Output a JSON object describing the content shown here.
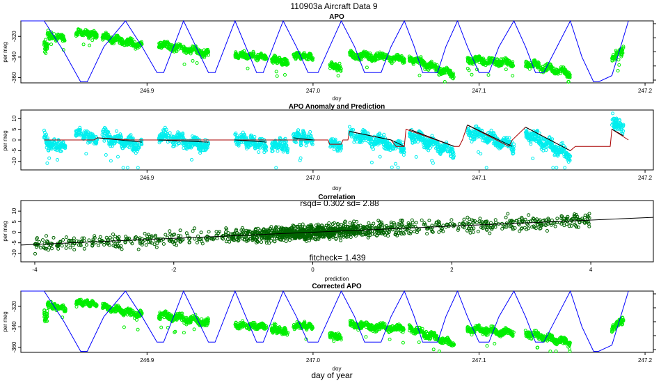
{
  "figure": {
    "title": "110903a   Aircraft Data 9",
    "bottom_label": "day of year"
  },
  "chart_data": [
    {
      "type": "scatter",
      "title": "APO",
      "xlabel": "doy",
      "ylabel": "per meg",
      "xlim": [
        246.824,
        247.205
      ],
      "ylim": [
        -365,
        -305
      ],
      "xticks": [
        "246.9",
        "247.0",
        "247.1",
        "247.2"
      ],
      "xtick_values": [
        246.9,
        247.0,
        247.1,
        247.2
      ],
      "yticks": [
        "-320",
        "-340",
        "-360"
      ],
      "ytick_values": [
        -320,
        -340,
        -360
      ],
      "series": [
        {
          "name": "APO observations",
          "kind": "points",
          "color": "#00ee00",
          "segments": [
            {
              "x0": 246.838,
              "x1": 246.84,
              "y0": -330,
              "y1": -330,
              "noise": 8
            },
            {
              "x0": 246.84,
              "x1": 246.847,
              "y0": -318,
              "y1": -322,
              "noise": 4
            },
            {
              "x0": 246.848,
              "x1": 246.851,
              "y0": -319,
              "y1": -324,
              "noise": 4
            },
            {
              "x0": 246.857,
              "x1": 246.87,
              "y0": -316,
              "y1": -318,
              "noise": 4
            },
            {
              "x0": 246.873,
              "x1": 246.897,
              "y0": -320,
              "y1": -329,
              "noise": 5
            },
            {
              "x0": 246.907,
              "x1": 246.937,
              "y0": -328,
              "y1": -336,
              "noise": 5
            },
            {
              "x0": 246.953,
              "x1": 246.972,
              "y0": -338,
              "y1": -340,
              "noise": 4
            },
            {
              "x0": 246.975,
              "x1": 246.985,
              "y0": -341,
              "y1": -346,
              "noise": 5
            },
            {
              "x0": 246.988,
              "x1": 247.0,
              "y0": -338,
              "y1": -340,
              "noise": 4
            },
            {
              "x0": 247.01,
              "x1": 247.017,
              "y0": -348,
              "y1": -351,
              "noise": 4
            },
            {
              "x0": 247.022,
              "x1": 247.055,
              "y0": -338,
              "y1": -342,
              "noise": 5
            },
            {
              "x0": 247.058,
              "x1": 247.085,
              "y0": -341,
              "y1": -357,
              "noise": 5
            },
            {
              "x0": 247.093,
              "x1": 247.121,
              "y0": -342,
              "y1": -346,
              "noise": 5
            },
            {
              "x0": 247.128,
              "x1": 247.155,
              "y0": -346,
              "y1": -356,
              "noise": 5
            },
            {
              "x0": 247.18,
              "x1": 247.187,
              "y0": -342,
              "y1": -333,
              "noise": 5
            }
          ]
        },
        {
          "name": "altitude profile",
          "kind": "line",
          "color": "#0000ff",
          "profile": [
            [
              246.824,
              -305
            ],
            [
              246.838,
              -305
            ],
            [
              246.85,
              -335
            ],
            [
              246.86,
              -364
            ],
            [
              246.864,
              -364
            ],
            [
              246.874,
              -330
            ],
            [
              246.887,
              -305
            ],
            [
              246.897,
              -330
            ],
            [
              246.906,
              -355
            ],
            [
              246.91,
              -355
            ],
            [
              246.922,
              -305
            ],
            [
              246.937,
              -355
            ],
            [
              246.941,
              -355
            ],
            [
              246.953,
              -305
            ],
            [
              246.966,
              -355
            ],
            [
              246.97,
              -355
            ],
            [
              246.982,
              -305
            ],
            [
              246.99,
              -330
            ],
            [
              246.997,
              -355
            ],
            [
              247.003,
              -355
            ],
            [
              247.01,
              -330
            ],
            [
              247.017,
              -305
            ],
            [
              247.025,
              -330
            ],
            [
              247.031,
              -355
            ],
            [
              247.041,
              -355
            ],
            [
              247.047,
              -330
            ],
            [
              247.055,
              -305
            ],
            [
              247.061,
              -330
            ],
            [
              247.066,
              -355
            ],
            [
              247.075,
              -355
            ],
            [
              247.08,
              -330
            ],
            [
              247.087,
              -305
            ],
            [
              247.093,
              -330
            ],
            [
              247.1,
              -355
            ],
            [
              247.106,
              -355
            ],
            [
              247.112,
              -330
            ],
            [
              247.121,
              -305
            ],
            [
              247.128,
              -330
            ],
            [
              247.134,
              -355
            ],
            [
              247.139,
              -355
            ],
            [
              247.147,
              -330
            ],
            [
              247.155,
              -305
            ],
            [
              247.162,
              -340
            ],
            [
              247.169,
              -364
            ],
            [
              247.172,
              -364
            ],
            [
              247.18,
              -358
            ],
            [
              247.19,
              -305
            ]
          ]
        }
      ],
      "profile_axis": {
        "side": "right",
        "ticks": 5
      }
    },
    {
      "type": "scatter",
      "title": "APO Anomaly and Prediction",
      "xlabel": "doy",
      "ylabel": "per meg",
      "xlim": [
        246.824,
        247.205
      ],
      "ylim": [
        -14,
        14
      ],
      "xticks": [
        "246.9",
        "247.0",
        "247.1",
        "247.2"
      ],
      "xtick_values": [
        246.9,
        247.0,
        247.1,
        247.2
      ],
      "yticks": [
        "10",
        "5",
        "0",
        "-5",
        "-10"
      ],
      "ytick_values": [
        10,
        5,
        0,
        -5,
        -10
      ],
      "series": [
        {
          "name": "anomaly",
          "kind": "points",
          "color": "#00eeee",
          "segments": [
            {
              "x0": 246.838,
              "x1": 246.841,
              "y0": 2,
              "y1": -3,
              "noise": 4
            },
            {
              "x0": 246.841,
              "x1": 246.851,
              "y0": -2,
              "y1": -3,
              "noise": 3
            },
            {
              "x0": 246.857,
              "x1": 246.87,
              "y0": 4,
              "y1": 0,
              "noise": 3
            },
            {
              "x0": 246.873,
              "x1": 246.897,
              "y0": 2,
              "y1": -3,
              "noise": 4
            },
            {
              "x0": 246.907,
              "x1": 246.937,
              "y0": 2,
              "y1": -3,
              "noise": 4
            },
            {
              "x0": 246.953,
              "x1": 246.972,
              "y0": 1,
              "y1": -3,
              "noise": 4
            },
            {
              "x0": 246.975,
              "x1": 246.985,
              "y0": -2,
              "y1": -3,
              "noise": 4
            },
            {
              "x0": 246.988,
              "x1": 247.0,
              "y0": 2,
              "y1": 0,
              "noise": 4
            },
            {
              "x0": 247.01,
              "x1": 247.017,
              "y0": -1,
              "y1": -3,
              "noise": 3
            },
            {
              "x0": 247.022,
              "x1": 247.055,
              "y0": 3,
              "y1": -4,
              "noise": 4
            },
            {
              "x0": 247.058,
              "x1": 247.085,
              "y0": 3,
              "y1": -6,
              "noise": 4
            },
            {
              "x0": 247.093,
              "x1": 247.121,
              "y0": 4,
              "y1": -3,
              "noise": 4
            },
            {
              "x0": 247.128,
              "x1": 247.155,
              "y0": 3,
              "y1": -7,
              "noise": 4
            },
            {
              "x0": 247.18,
              "x1": 247.187,
              "y0": 9,
              "y1": 5,
              "noise": 4
            }
          ]
        },
        {
          "name": "baseline",
          "kind": "line",
          "color": "#aa0000",
          "points": [
            [
              246.838,
              0
            ],
            [
              246.868,
              0
            ],
            [
              246.87,
              1
            ],
            [
              246.89,
              0
            ],
            [
              247.009,
              0
            ],
            [
              247.01,
              -2
            ],
            [
              247.017,
              -2
            ],
            [
              247.018,
              0
            ],
            [
              247.021,
              0
            ],
            [
              247.022,
              4
            ],
            [
              247.047,
              0
            ],
            [
              247.05,
              -3
            ],
            [
              247.052,
              -3
            ],
            [
              247.055,
              -3
            ],
            [
              247.056,
              5
            ],
            [
              247.085,
              -3
            ],
            [
              247.088,
              -3
            ],
            [
              247.09,
              0
            ],
            [
              247.093,
              7
            ],
            [
              247.118,
              -3
            ],
            [
              247.12,
              0
            ],
            [
              247.128,
              6
            ],
            [
              247.155,
              -5
            ],
            [
              247.158,
              -3
            ],
            [
              247.179,
              -3
            ],
            [
              247.18,
              5
            ],
            [
              247.19,
              0
            ]
          ]
        },
        {
          "name": "prediction",
          "kind": "line",
          "color": "#000000",
          "segments": [
            [
              [
                246.87,
                1
              ],
              [
                246.897,
                -1
              ]
            ],
            [
              [
                246.907,
                0
              ],
              [
                246.937,
                -1
              ]
            ],
            [
              [
                246.953,
                0
              ],
              [
                246.972,
                -1
              ]
            ],
            [
              [
                246.988,
                1
              ],
              [
                247.0,
                0
              ]
            ],
            [
              [
                247.022,
                4
              ],
              [
                247.047,
                0
              ],
              [
                247.055,
                -3
              ]
            ],
            [
              [
                247.058,
                5
              ],
              [
                247.085,
                -3
              ]
            ],
            [
              [
                247.093,
                7
              ],
              [
                247.12,
                -3
              ]
            ],
            [
              [
                247.128,
                6
              ],
              [
                247.155,
                -5
              ]
            ],
            [
              [
                247.18,
                5
              ],
              [
                247.187,
                2
              ]
            ]
          ]
        }
      ]
    },
    {
      "type": "scatter",
      "title": "Correlation",
      "xlabel": "prediction",
      "ylabel": "per meg",
      "xlim": [
        -4.2,
        4.9
      ],
      "ylim": [
        -14,
        15
      ],
      "xticks": [
        "-4",
        "-2",
        "0",
        "2",
        "4"
      ],
      "xtick_values": [
        -4,
        -2,
        0,
        2,
        4
      ],
      "yticks": [
        "10",
        "5",
        "0",
        "-5",
        "-10"
      ],
      "ytick_values": [
        10,
        5,
        0,
        -5,
        -10
      ],
      "annotations": [
        "rsqd= 0.302 sd= 2.88",
        "fitcheck= 1.439"
      ],
      "fit": {
        "slope": 1.439,
        "intercept": 0,
        "color": "#000000"
      },
      "series": [
        {
          "name": "anomaly vs prediction",
          "kind": "points",
          "color": "#006400",
          "x_range": [
            -4.0,
            4.0
          ],
          "slope": 1.439,
          "noise": 2.88
        }
      ]
    },
    {
      "type": "scatter",
      "title": "Corrected APO",
      "xlabel": "doy",
      "ylabel": "per meg",
      "xlim": [
        246.824,
        247.205
      ],
      "ylim": [
        -365,
        -305
      ],
      "xticks": [
        "246.9",
        "247.0",
        "247.1",
        "247.2"
      ],
      "xtick_values": [
        246.9,
        247.0,
        247.1,
        247.2
      ],
      "yticks": [
        "-320",
        "-340",
        "-360"
      ],
      "ytick_values": [
        -320,
        -340,
        -360
      ],
      "series_ref": 0,
      "profile_axis": {
        "side": "right",
        "ticks": 5
      }
    }
  ]
}
